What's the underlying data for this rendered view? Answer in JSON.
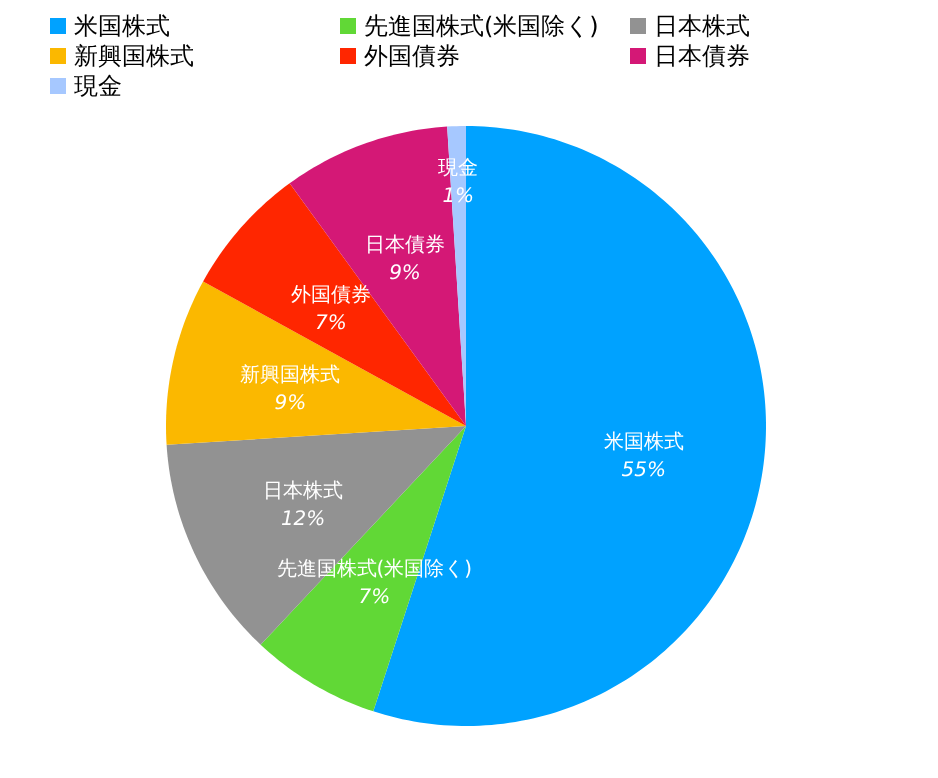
{
  "chart_data": {
    "type": "pie",
    "categories": [
      "米国株式",
      "先進国株式(米国除く)",
      "日本株式",
      "新興国株式",
      "外国債券",
      "日本債券",
      "現金"
    ],
    "values": [
      55,
      7,
      12,
      9,
      7,
      9,
      1
    ],
    "colors": [
      "#00a2ff",
      "#61d836",
      "#929292",
      "#fbb800",
      "#ff2600",
      "#d41876",
      "#a6c8ff"
    ],
    "value_labels": [
      "55%",
      "7%",
      "12%",
      "9%",
      "7%",
      "9%",
      "1%"
    ],
    "legend": "top left"
  }
}
